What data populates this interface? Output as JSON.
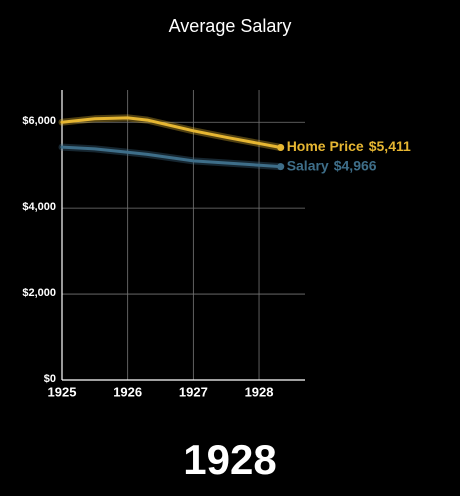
{
  "chart_data": {
    "type": "line",
    "title": "Average Salary",
    "annotation": "1928",
    "x": [
      1925,
      1925.5,
      1926,
      1926.3,
      1927,
      1927.5,
      1928.33
    ],
    "series": [
      {
        "name": "Home Price",
        "color": "#e6b632",
        "values": [
          6000,
          6080,
          6100,
          6050,
          5800,
          5650,
          5411
        ],
        "value_labels": [
          null,
          null,
          null,
          null,
          null,
          null,
          "$5,411"
        ]
      },
      {
        "name": "Salary",
        "color": "#3e6e89",
        "values": [
          5420,
          5380,
          5300,
          5250,
          5100,
          5050,
          4966
        ],
        "value_labels": [
          null,
          null,
          null,
          null,
          null,
          null,
          "$4,966"
        ]
      }
    ],
    "xlim": [
      1925,
      1928.7
    ],
    "xticks": [
      1925,
      1926,
      1927,
      1928
    ],
    "ylim": [
      0,
      6750
    ],
    "yticks": [
      {
        "value": 0,
        "label": "$0"
      },
      {
        "value": 2000,
        "label": "$2,000"
      },
      {
        "value": 4000,
        "label": "$4,000"
      },
      {
        "value": 6000,
        "label": "$6,000"
      }
    ],
    "grid": true
  }
}
